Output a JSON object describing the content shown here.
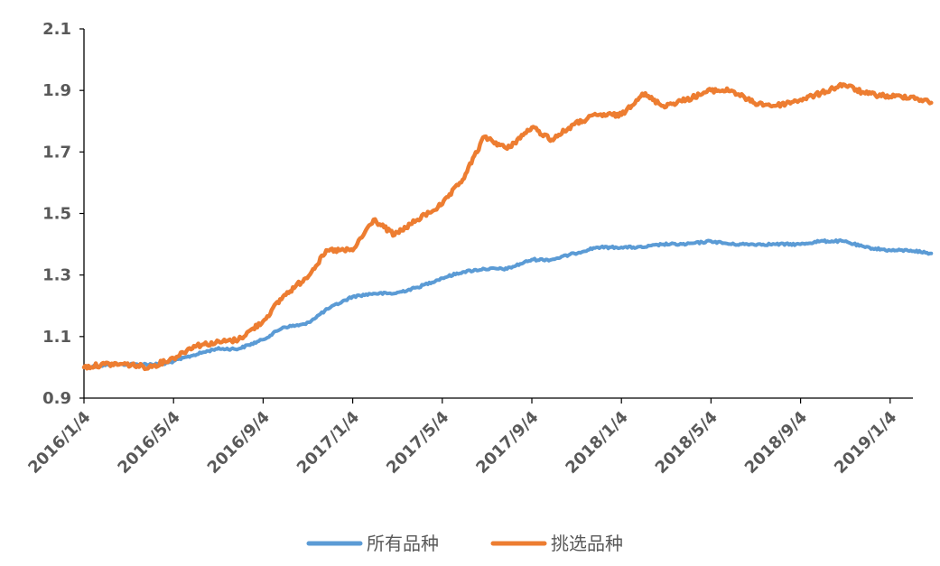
{
  "chart_data": {
    "type": "line",
    "title": "",
    "xlabel": "",
    "ylabel": "",
    "ylim": [
      0.9,
      2.1
    ],
    "y_ticks": [
      "0.9",
      "1.1",
      "1.3",
      "1.5",
      "1.7",
      "1.9",
      "2.1"
    ],
    "x_ticks": [
      "2016/1/4",
      "2016/5/4",
      "2016/9/4",
      "2017/1/4",
      "2017/5/4",
      "2017/9/4",
      "2018/1/4",
      "2018/5/4",
      "2018/9/4",
      "2019/1/4"
    ],
    "x_range": [
      "2016/1/4",
      "2019/3/1"
    ],
    "grid": false,
    "legend_position": "bottom",
    "series": [
      {
        "name": "所有品种",
        "color": "#5B9BD5",
        "points": [
          [
            "2016/1/4",
            1.0
          ],
          [
            "2016/2/15",
            1.01
          ],
          [
            "2016/3/20",
            1.01
          ],
          [
            "2016/4/20",
            1.01
          ],
          [
            "2016/5/4",
            1.02
          ],
          [
            "2016/6/1",
            1.04
          ],
          [
            "2016/7/1",
            1.06
          ],
          [
            "2016/8/1",
            1.06
          ],
          [
            "2016/9/4",
            1.09
          ],
          [
            "2016/10/1",
            1.13
          ],
          [
            "2016/11/1",
            1.14
          ],
          [
            "2016/12/1",
            1.19
          ],
          [
            "2017/1/4",
            1.23
          ],
          [
            "2017/2/1",
            1.24
          ],
          [
            "2017/3/1",
            1.24
          ],
          [
            "2017/4/1",
            1.26
          ],
          [
            "2017/5/4",
            1.29
          ],
          [
            "2017/6/1",
            1.31
          ],
          [
            "2017/7/1",
            1.32
          ],
          [
            "2017/8/1",
            1.32
          ],
          [
            "2017/9/4",
            1.35
          ],
          [
            "2017/10/1",
            1.35
          ],
          [
            "2017/11/1",
            1.37
          ],
          [
            "2017/12/1",
            1.39
          ],
          [
            "2018/1/4",
            1.39
          ],
          [
            "2018/2/1",
            1.39
          ],
          [
            "2018/3/1",
            1.4
          ],
          [
            "2018/4/1",
            1.4
          ],
          [
            "2018/5/4",
            1.41
          ],
          [
            "2018/6/1",
            1.4
          ],
          [
            "2018/7/1",
            1.4
          ],
          [
            "2018/8/1",
            1.4
          ],
          [
            "2018/9/4",
            1.4
          ],
          [
            "2018/10/1",
            1.41
          ],
          [
            "2018/11/1",
            1.41
          ],
          [
            "2018/12/1",
            1.39
          ],
          [
            "2019/1/4",
            1.38
          ],
          [
            "2019/2/1",
            1.38
          ],
          [
            "2019/3/1",
            1.37
          ]
        ]
      },
      {
        "name": "挑选品种",
        "color": "#ED7D31",
        "points": [
          [
            "2016/1/4",
            1.0
          ],
          [
            "2016/2/1",
            1.01
          ],
          [
            "2016/3/1",
            1.01
          ],
          [
            "2016/4/1",
            1.0
          ],
          [
            "2016/5/4",
            1.03
          ],
          [
            "2016/6/1",
            1.07
          ],
          [
            "2016/7/1",
            1.08
          ],
          [
            "2016/8/1",
            1.09
          ],
          [
            "2016/9/4",
            1.15
          ],
          [
            "2016/10/1",
            1.23
          ],
          [
            "2016/11/1",
            1.29
          ],
          [
            "2016/12/1",
            1.38
          ],
          [
            "2017/1/4",
            1.38
          ],
          [
            "2017/2/1",
            1.48
          ],
          [
            "2017/3/1",
            1.43
          ],
          [
            "2017/4/1",
            1.48
          ],
          [
            "2017/5/4",
            1.53
          ],
          [
            "2017/6/1",
            1.61
          ],
          [
            "2017/7/1",
            1.75
          ],
          [
            "2017/8/1",
            1.71
          ],
          [
            "2017/9/4",
            1.78
          ],
          [
            "2017/10/1",
            1.74
          ],
          [
            "2017/11/1",
            1.79
          ],
          [
            "2017/12/1",
            1.82
          ],
          [
            "2018/1/4",
            1.82
          ],
          [
            "2018/2/1",
            1.89
          ],
          [
            "2018/3/1",
            1.85
          ],
          [
            "2018/4/1",
            1.87
          ],
          [
            "2018/5/4",
            1.9
          ],
          [
            "2018/6/1",
            1.9
          ],
          [
            "2018/7/1",
            1.86
          ],
          [
            "2018/8/1",
            1.85
          ],
          [
            "2018/9/4",
            1.87
          ],
          [
            "2018/10/1",
            1.89
          ],
          [
            "2018/11/1",
            1.92
          ],
          [
            "2018/12/1",
            1.89
          ],
          [
            "2019/1/4",
            1.88
          ],
          [
            "2019/2/1",
            1.88
          ],
          [
            "2019/3/1",
            1.86
          ]
        ]
      }
    ]
  }
}
